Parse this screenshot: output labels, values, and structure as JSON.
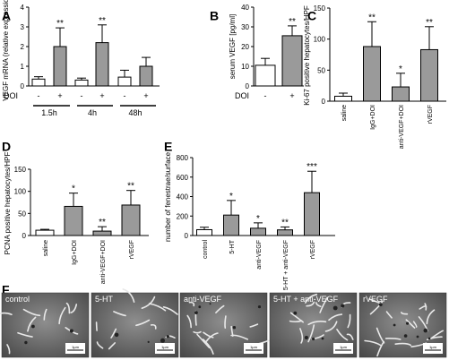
{
  "figure": {
    "panel_labels": [
      "A",
      "B",
      "C",
      "D",
      "E",
      "F"
    ],
    "colors": {
      "control": "#ffffff",
      "treated": "#9a9a9a",
      "axis": "#000000"
    }
  },
  "chart_data": [
    {
      "panel": "A",
      "type": "bar",
      "ylabel": "VEGF mRNA (relative expression)",
      "ylim": [
        0,
        4
      ],
      "yticks": [
        "0",
        "1",
        "2",
        "3",
        "4"
      ],
      "xrow_label": "DOI",
      "categories": [
        "-",
        "+",
        "-",
        "+",
        "-",
        "+"
      ],
      "groups": [
        "1.5h",
        "4h",
        "48h"
      ],
      "values": [
        0.35,
        2.0,
        0.3,
        2.2,
        0.45,
        1.0
      ],
      "errors": [
        0.12,
        0.95,
        0.1,
        0.9,
        0.35,
        0.45
      ],
      "fill": [
        "control",
        "treated",
        "control",
        "treated",
        "control",
        "treated"
      ],
      "annotations": [
        "",
        "**",
        "",
        "**",
        "",
        ""
      ]
    },
    {
      "panel": "B",
      "type": "bar",
      "ylabel": "serum VEGF [pg/ml]",
      "ylim": [
        0,
        40
      ],
      "yticks": [
        "0",
        "10",
        "20",
        "30",
        "40"
      ],
      "xrow_label": "DOI",
      "categories": [
        "-",
        "+"
      ],
      "values": [
        10.5,
        25.5
      ],
      "errors": [
        3.5,
        5.0
      ],
      "fill": [
        "control",
        "treated"
      ],
      "annotations": [
        "",
        "**"
      ]
    },
    {
      "panel": "C",
      "type": "bar",
      "ylabel": "Ki-67 positive hepatocytes/HPF",
      "ylim": [
        0,
        150
      ],
      "yticks": [
        "0",
        "50",
        "100",
        "150"
      ],
      "categories": [
        "saline",
        "IgG+DOI",
        "anti-VEGF+DOI",
        "rVEGF"
      ],
      "values": [
        8,
        88,
        23,
        83
      ],
      "errors": [
        5,
        40,
        22,
        37
      ],
      "fill": [
        "control",
        "treated",
        "treated",
        "treated"
      ],
      "annotations": [
        "",
        "**",
        "*",
        "**"
      ]
    },
    {
      "panel": "D",
      "type": "bar",
      "ylabel": "PCNA positive hepatocytes/HPF",
      "ylim": [
        0,
        150
      ],
      "yticks": [
        "0",
        "50",
        "100",
        "150"
      ],
      "categories": [
        "saline",
        "IgG+DOI",
        "anti-VEGF+DOI",
        "rVEGF"
      ],
      "values": [
        12,
        66,
        10,
        69
      ],
      "errors": [
        2,
        30,
        10,
        33
      ],
      "fill": [
        "control",
        "treated",
        "treated",
        "treated"
      ],
      "annotations": [
        "",
        "*",
        "**",
        "**"
      ]
    },
    {
      "panel": "E",
      "type": "bar",
      "ylabel": "number of fenestrae/surface",
      "ylim": [
        0,
        800
      ],
      "yticks": [
        "0",
        "200",
        "400",
        "600",
        "800"
      ],
      "categories": [
        "control",
        "5-HT",
        "anti-VEGF",
        "5-HT + anti-VEGF",
        "rVEGF"
      ],
      "values": [
        60,
        210,
        75,
        58,
        440
      ],
      "errors": [
        25,
        150,
        55,
        30,
        220
      ],
      "fill": [
        "control",
        "treated",
        "treated",
        "treated",
        "treated"
      ],
      "annotations": [
        "",
        "*",
        "*",
        "**",
        "***"
      ]
    }
  ],
  "micrographs": {
    "images": [
      {
        "label": "control",
        "scale": "1µm"
      },
      {
        "label": "5-HT",
        "scale": "1µm"
      },
      {
        "label": "anti-VEGF",
        "scale": "1µm"
      },
      {
        "label": "5-HT + anti-VEGF",
        "scale": "1µm"
      },
      {
        "label": "rVEGF",
        "scale": "1µm"
      }
    ]
  }
}
